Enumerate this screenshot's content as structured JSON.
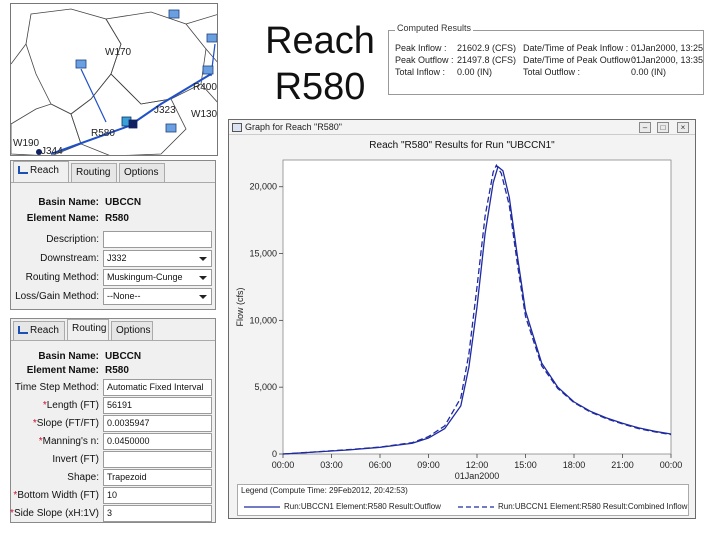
{
  "slide": {
    "title_line1": "Reach",
    "title_line2": "R580"
  },
  "map": {
    "labels": [
      "W170",
      "R400",
      "J323",
      "W130",
      "R580",
      "J344",
      "W190"
    ]
  },
  "computed_results": {
    "legend": "Computed Results",
    "peak_inflow_label": "Peak Inflow :",
    "peak_inflow_value": "21602.9 (CFS)",
    "peak_outflow_label": "Peak Outflow :",
    "peak_outflow_value": "21497.8 (CFS)",
    "total_inflow_label": "Total Inflow :",
    "total_inflow_value": "0.00 (IN)",
    "peak_inflow_time_label": "Date/Time of Peak Inflow :",
    "peak_inflow_time_value": "01Jan2000, 13:25",
    "peak_outflow_time_label": "Date/Time of Peak Outflow :",
    "peak_outflow_time_value": "01Jan2000, 13:35",
    "total_outflow_label": "Total Outflow :",
    "total_outflow_value": "0.00 (IN)"
  },
  "reach_panel": {
    "tabs": [
      "Reach",
      "Routing",
      "Options"
    ],
    "basin_name_label": "Basin Name:",
    "basin_name_value": "UBCCN",
    "element_name_label": "Element Name:",
    "element_name_value": "R580",
    "description_label": "Description:",
    "description_value": "",
    "downstream_label": "Downstream:",
    "downstream_value": "J332",
    "routing_method_label": "Routing Method:",
    "routing_method_value": "Muskingum-Cunge",
    "loss_gain_label": "Loss/Gain Method:",
    "loss_gain_value": "--None--"
  },
  "routing_panel": {
    "tabs": [
      "Reach",
      "Routing",
      "Options"
    ],
    "basin_name_label": "Basin Name:",
    "basin_name_value": "UBCCN",
    "element_name_label": "Element Name:",
    "element_name_value": "R580",
    "time_step_label": "Time Step Method:",
    "time_step_value": "Automatic Fixed Interval",
    "length_label": "Length (FT)",
    "length_value": "56191",
    "slope_label": "Slope (FT/FT)",
    "slope_value": "0.0035947",
    "mannings_label": "Manning's n:",
    "mannings_value": "0.0450000",
    "invert_label": "Invert (FT)",
    "invert_value": "",
    "shape_label": "Shape:",
    "shape_value": "Trapezoid",
    "bottom_width_label": "Bottom Width (FT)",
    "bottom_width_value": "10",
    "side_slope_label": "Side Slope (xH:1V)",
    "side_slope_value": "3"
  },
  "graph_window": {
    "window_title": "Graph for Reach \"R580\"",
    "legend_title": "Legend (Compute Time: 29Feb2012, 20:42:53)",
    "legend_outflow": "Run:UBCCN1 Element:R580 Result:Outflow",
    "legend_inflow": "Run:UBCCN1 Element:R580 Result:Combined Inflow"
  },
  "chart_data": {
    "type": "line",
    "title": "Reach \"R580\" Results for Run \"UBCCN1\"",
    "ylabel": "Flow (cfs)",
    "xlabel": "01Jan2000",
    "x_tick_labels": [
      "00:00",
      "03:00",
      "06:00",
      "09:00",
      "12:00",
      "15:00",
      "18:00",
      "21:00",
      "00:00"
    ],
    "y_tick_labels": [
      "0",
      "5,000",
      "10,000",
      "15,000",
      "20,000"
    ],
    "xlim": [
      0,
      24
    ],
    "ylim": [
      0,
      22000
    ],
    "grid": false,
    "series": [
      {
        "name": "Run:UBCCN1 Element:R580 Result:Outflow",
        "style": "solid",
        "color": "#1e2aa0",
        "x": [
          0,
          2,
          4,
          6,
          8,
          9,
          10,
          11,
          11.5,
          12,
          12.5,
          13,
          13.3,
          13.6,
          14,
          14.5,
          15,
          16,
          17,
          18,
          19,
          20,
          21,
          22,
          23,
          24
        ],
        "y": [
          0,
          150,
          300,
          500,
          800,
          1200,
          1900,
          3600,
          6500,
          11000,
          16500,
          20300,
          21497,
          21200,
          19200,
          14800,
          10700,
          6800,
          5000,
          3900,
          3200,
          2700,
          2300,
          1950,
          1700,
          1500
        ]
      },
      {
        "name": "Run:UBCCN1 Element:R580 Result:Combined Inflow",
        "style": "dashed",
        "color": "#1e2aa0",
        "x": [
          0,
          2,
          4,
          6,
          8,
          9,
          10,
          11,
          11.5,
          12,
          12.5,
          13,
          13.2,
          13.5,
          14,
          14.5,
          15,
          16,
          17,
          18,
          19,
          20,
          21,
          22,
          23,
          24
        ],
        "y": [
          0,
          160,
          320,
          520,
          850,
          1300,
          2100,
          4200,
          7500,
          12500,
          17800,
          21100,
          21602,
          21000,
          18600,
          14200,
          10300,
          6600,
          4900,
          3850,
          3150,
          2650,
          2250,
          1900,
          1650,
          1450
        ]
      }
    ]
  }
}
